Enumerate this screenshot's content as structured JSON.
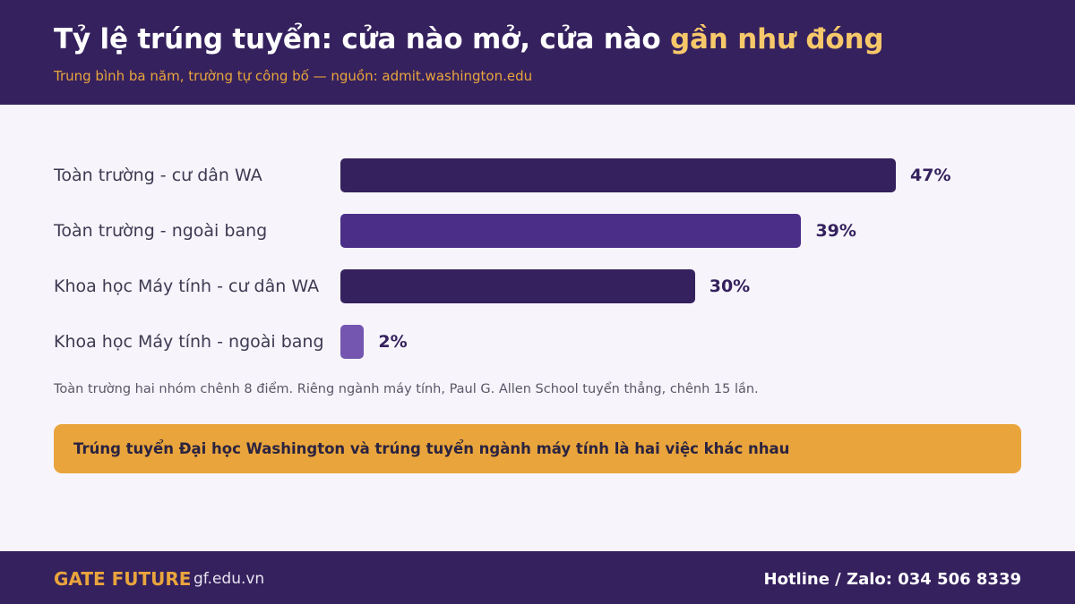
{
  "header": {
    "title_main": "Tỷ lệ trúng tuyển: cửa nào mở, cửa nào ",
    "title_highlight": "gần như đóng",
    "subtitle": "Trung bình ba năm, trường tự công bố — nguồn: admit.washington.edu"
  },
  "colors": {
    "header_bg": "#35215e",
    "accent": "#e9a53c",
    "highlight": "#f7c86a",
    "bar_dark": "#35215e",
    "bar_mid": "#4a2e87",
    "bar_light": "#7456b0"
  },
  "chart_data": {
    "type": "bar",
    "orientation": "horizontal",
    "categories": [
      "Toàn trường - cư dân WA",
      "Toàn trường - ngoài bang",
      "Khoa học Máy tính - cư dân WA",
      "Khoa học Máy tính - ngoài bang"
    ],
    "values": [
      47,
      39,
      30,
      2
    ],
    "value_labels": [
      "47%",
      "39%",
      "30%",
      "2%"
    ],
    "bar_colors": [
      "#35215e",
      "#4a2e87",
      "#35215e",
      "#7456b0"
    ],
    "xlim": [
      0,
      47
    ],
    "grid": false,
    "legend": "none"
  },
  "note": "Toàn trường hai nhóm chênh 8 điểm. Riêng ngành máy tính, Paul G. Allen School tuyển thẳng, chênh 15 lần.",
  "callout": "Trúng tuyển Đại học Washington và trúng tuyển ngành máy tính là hai việc khác nhau",
  "footer": {
    "brand": "GATE FUTURE",
    "site": "gf.edu.vn",
    "hotline": "Hotline / Zalo: 034 506 8339"
  }
}
